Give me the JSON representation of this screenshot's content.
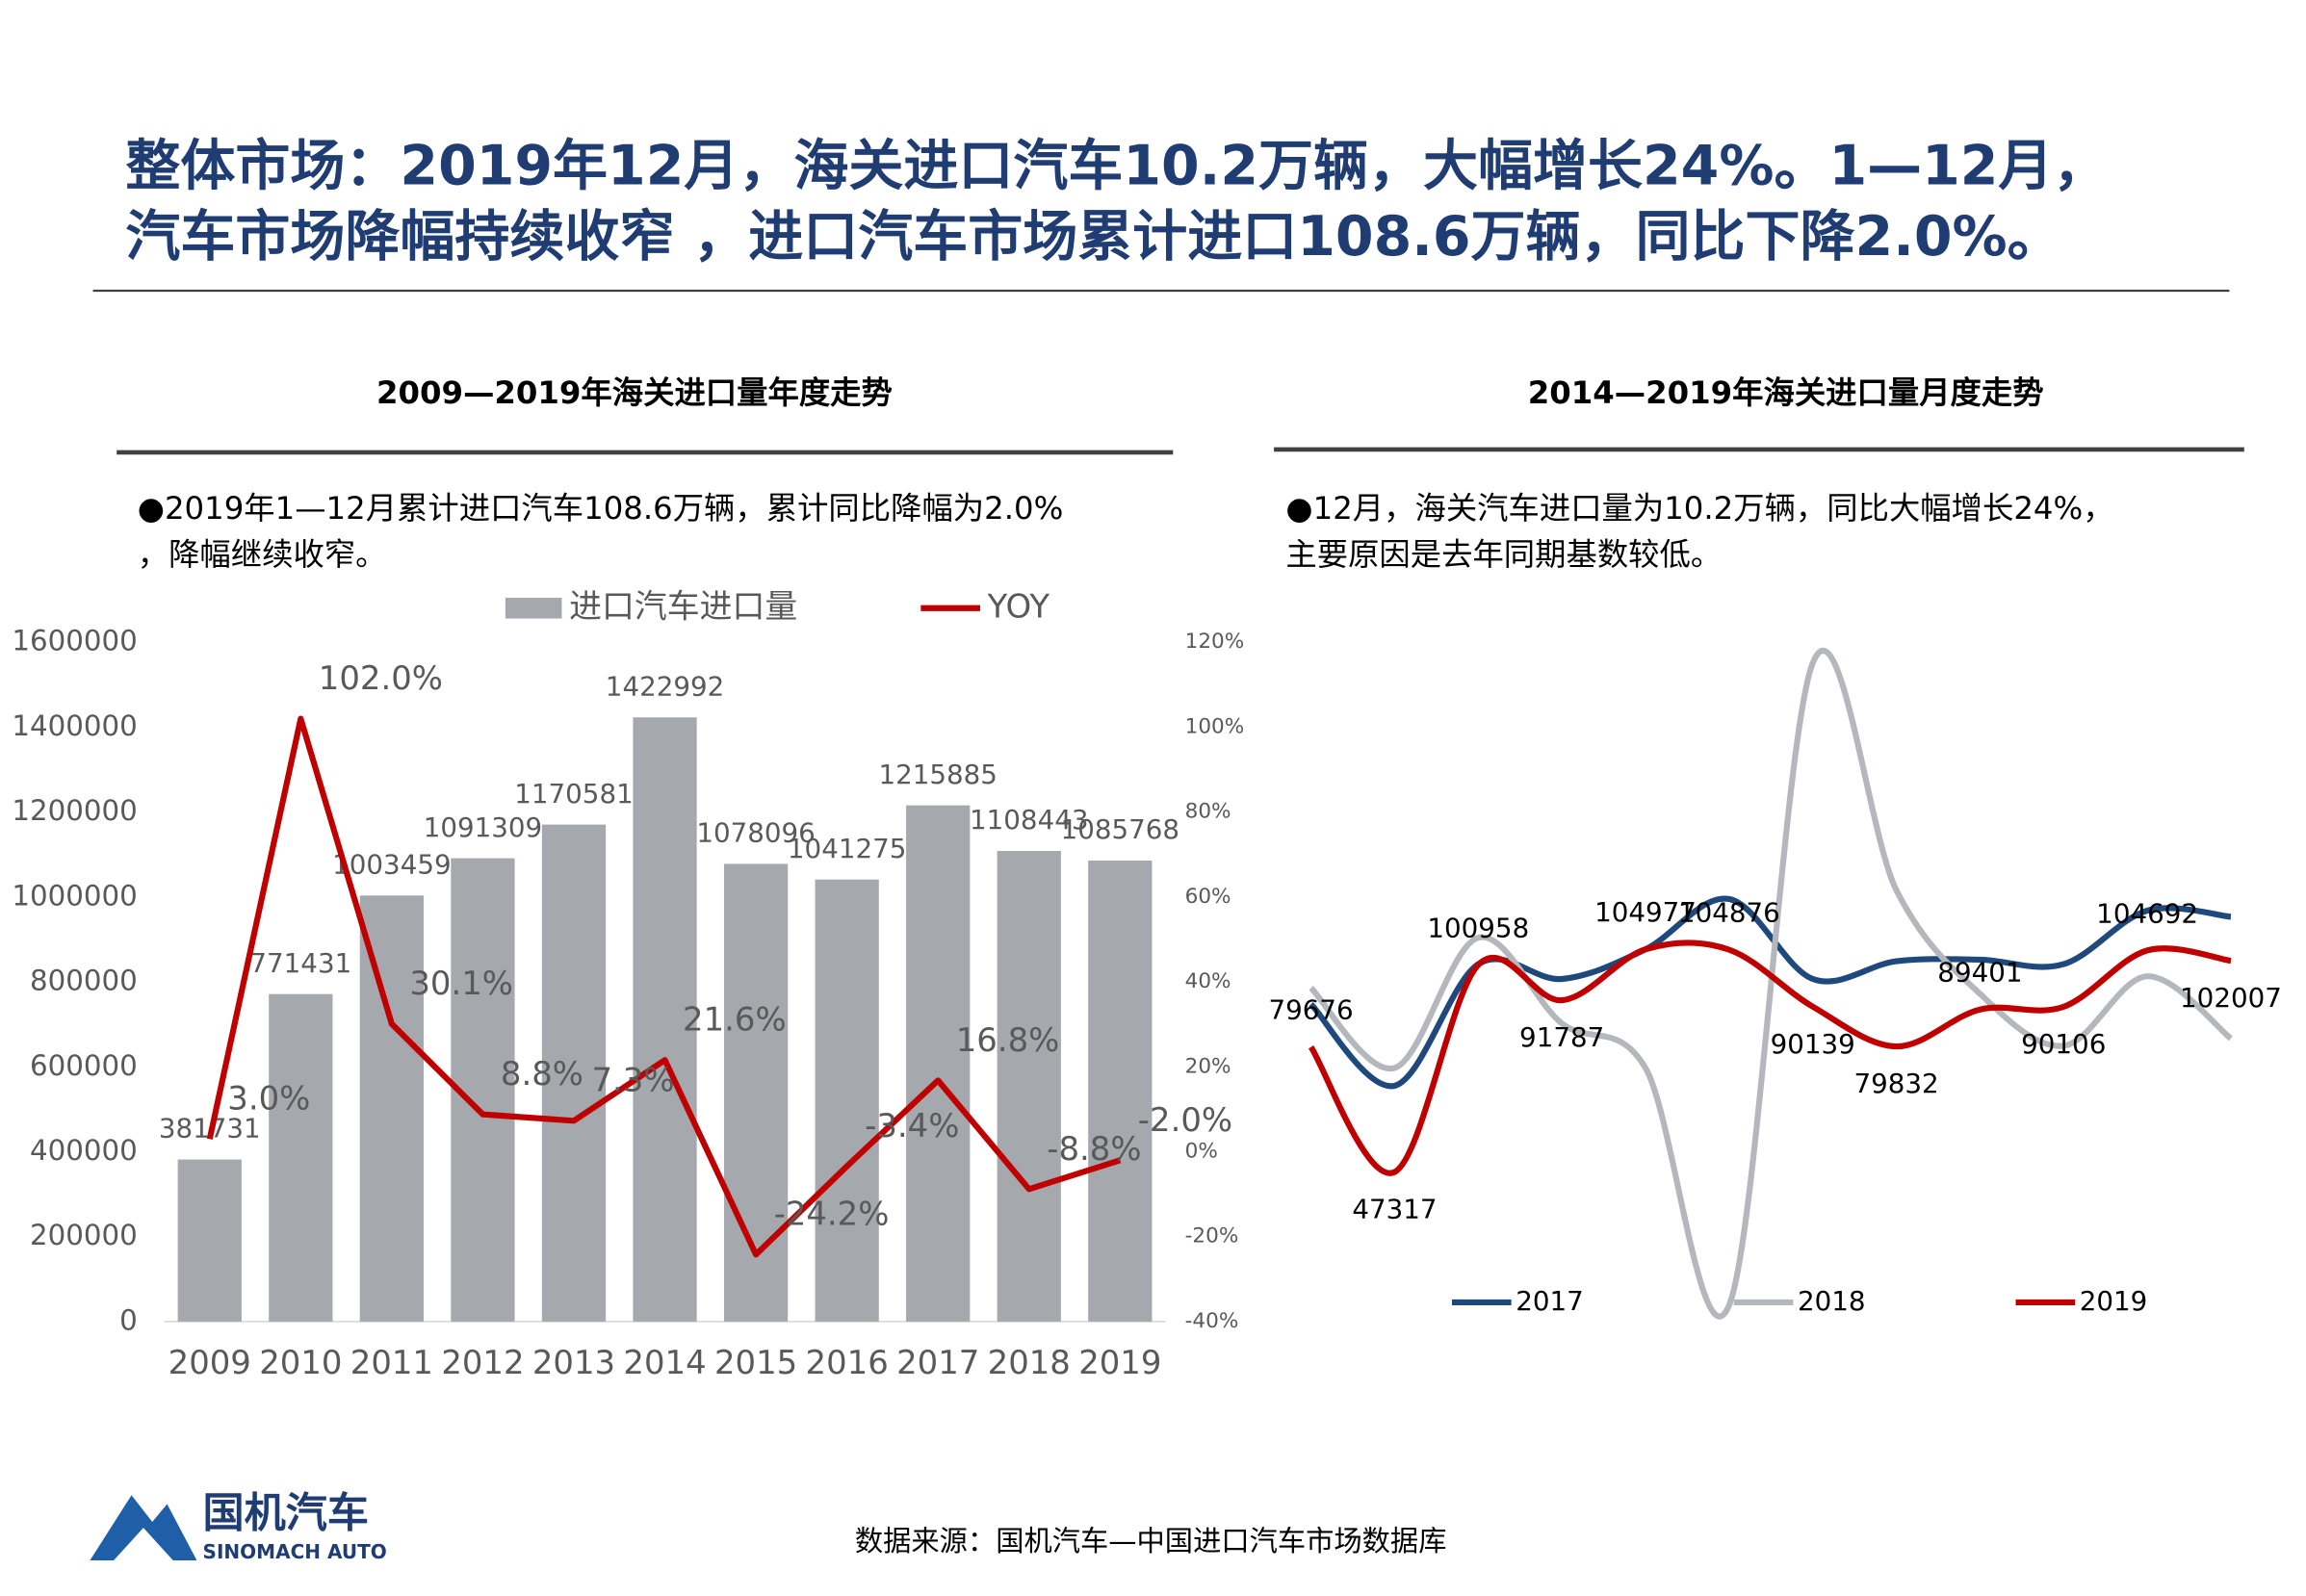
{
  "header": {
    "title": [
      "整体市场：2019年12月，海关进口汽车10.2万辆，大幅增长24%。1—12月，",
      "汽车市场降幅持续收窄 ，进口汽车市场累计进口108.6万辆，同比下降2.0%。"
    ]
  },
  "chart_data": [
    {
      "type": "bar",
      "title": "2009—2019年海关进口量年度走势",
      "note": [
        "●2019年1—12月累计进口汽车108.6万辆，累计同比降幅为2.0%",
        "，降幅继续收窄。"
      ],
      "categories": [
        "2009",
        "2010",
        "2011",
        "2012",
        "2013",
        "2014",
        "2015",
        "2016",
        "2017",
        "2018",
        "2019"
      ],
      "series": [
        {
          "name": "进口汽车进口量",
          "type": "bar",
          "color": "#a5a8ad",
          "values": [
            381731,
            771431,
            1003459,
            1091309,
            1170581,
            1422992,
            1078096,
            1041275,
            1215885,
            1108443,
            1085768
          ]
        },
        {
          "name": "YOY",
          "type": "line",
          "axis": "y2",
          "color": "#c00000",
          "values": [
            3.0,
            102.0,
            30.1,
            8.8,
            7.3,
            21.6,
            -24.2,
            -3.4,
            16.8,
            -8.8,
            -2.0
          ],
          "value_labels": [
            "3.0%",
            "102.0%",
            "30.1%",
            "8.8%",
            "7.3%",
            "21.6%",
            "-24.2%",
            "-3.4%",
            "16.8%",
            "-8.8%",
            "-2.0%"
          ]
        }
      ],
      "ylim": [
        0,
        1600000
      ],
      "yticks": [
        0,
        200000,
        400000,
        600000,
        800000,
        1000000,
        1200000,
        1400000,
        1600000
      ],
      "y2lim": [
        -40,
        120
      ],
      "y2ticks": [
        {
          "value": -40,
          "label": "-40%"
        },
        {
          "value": -20,
          "label": "-20%"
        },
        {
          "value": 0,
          "label": "0%"
        },
        {
          "value": 20,
          "label": "20%"
        },
        {
          "value": 40,
          "label": "40%"
        },
        {
          "value": 60,
          "label": "60%"
        },
        {
          "value": 80,
          "label": "80%"
        },
        {
          "value": 100,
          "label": "100%"
        },
        {
          "value": 120,
          "label": "120%"
        }
      ],
      "legend": "top"
    },
    {
      "type": "line",
      "title": "2014—2019年海关进口量月度走势",
      "note": [
        "●12月，海关汽车进口量为10.2万辆，同比大幅增长24%，",
        "主要原因是去年同期基数较低。"
      ],
      "categories": [
        null,
        null,
        null,
        null,
        null,
        null,
        null,
        null,
        null,
        null,
        null,
        null
      ],
      "series": [
        {
          "name": "2017",
          "color": "#1f497d",
          "values": [
            90770,
            69650,
            101140,
            97300,
            104977,
            118000,
            97300,
            101900,
            102300,
            101140,
            115000,
            113400
          ]
        },
        {
          "name": "2018",
          "color": "#b4b7bb",
          "values": [
            95000,
            74260,
            108000,
            85800,
            74260,
            12820,
            179100,
            120300,
            93460,
            80000,
            98000,
            81900
          ]
        },
        {
          "name": "2019",
          "color": "#c00000",
          "values": [
            79676,
            47317,
            100958,
            91787,
            104977,
            104876,
            90139,
            79832,
            89401,
            90106,
            104692,
            102007
          ],
          "labels": true
        }
      ],
      "legend": "bottom"
    }
  ],
  "footer": {
    "source": "数据来源：国机汽车—中国进口汽车市场数据库",
    "logo": {
      "name": "国机汽车",
      "name_en": "SINOMACH AUTO"
    }
  }
}
